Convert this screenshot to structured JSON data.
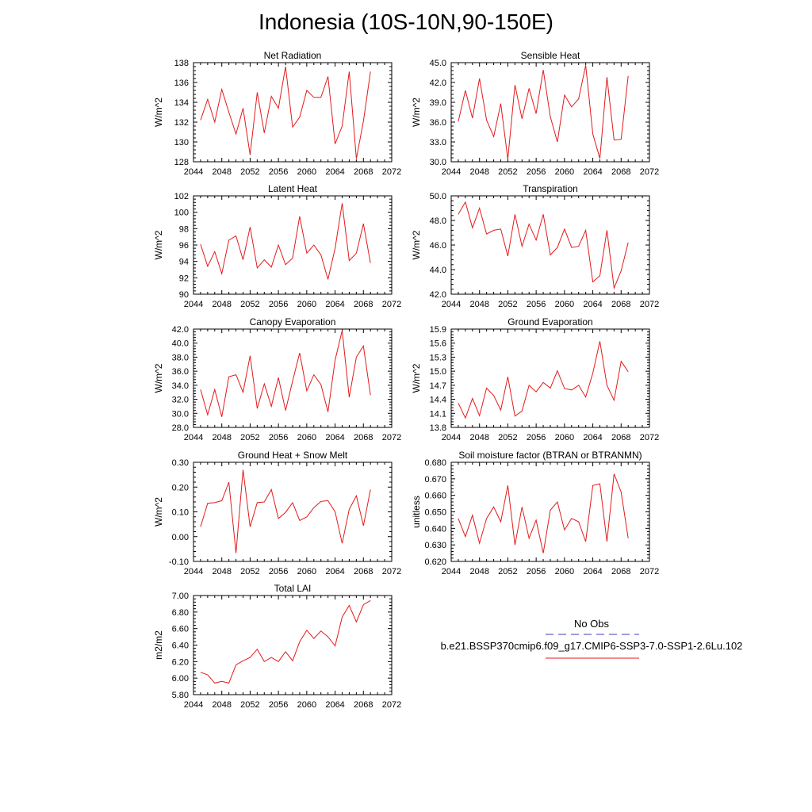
{
  "title": "Indonesia (10S-10N,90-150E)",
  "legend": {
    "obs_label": "No Obs",
    "obs_color": "#3b3bbf",
    "model_label": "b.e21.BSSP370cmip6.f09_g17.CMIP6-SSP3-7.0-SSP1-2.6Lu.102",
    "model_color": "#e31a1c"
  },
  "chart_data": [
    {
      "type": "line",
      "title": "Net Radiation",
      "ylabel": "W/m^2",
      "xlim": [
        2044,
        2072
      ],
      "ylim": [
        128,
        138
      ],
      "xticks": [
        "2044",
        "2048",
        "2052",
        "2056",
        "2060",
        "2064",
        "2068",
        "2072"
      ],
      "yticks": [
        "128",
        "130",
        "132",
        "134",
        "136",
        "138"
      ],
      "x": [
        2045,
        2046,
        2047,
        2048,
        2049,
        2050,
        2051,
        2052,
        2053,
        2054,
        2055,
        2056,
        2057,
        2058,
        2059,
        2060,
        2061,
        2062,
        2063,
        2064,
        2065,
        2066,
        2067,
        2068,
        2069
      ],
      "series": [
        {
          "color": "#e31a1c",
          "values": [
            132.2,
            134.3,
            132.0,
            135.3,
            133.0,
            130.8,
            133.4,
            128.7,
            135.0,
            130.9,
            134.6,
            133.4,
            137.6,
            131.5,
            132.5,
            135.2,
            134.5,
            134.5,
            136.6,
            129.8,
            131.6,
            137.1,
            128.3,
            132.1,
            137.1
          ]
        }
      ]
    },
    {
      "type": "line",
      "title": "Sensible Heat",
      "ylabel": "W/m^2",
      "xlim": [
        2044,
        2072
      ],
      "ylim": [
        30,
        45
      ],
      "xticks": [
        "2044",
        "2048",
        "2052",
        "2056",
        "2060",
        "2064",
        "2068",
        "2072"
      ],
      "yticks": [
        "30.0",
        "33.0",
        "36.0",
        "39.0",
        "42.0",
        "45.0"
      ],
      "x": [
        2045,
        2046,
        2047,
        2048,
        2049,
        2050,
        2051,
        2052,
        2053,
        2054,
        2055,
        2056,
        2057,
        2058,
        2059,
        2060,
        2061,
        2062,
        2063,
        2064,
        2065,
        2066,
        2067,
        2068,
        2069
      ],
      "series": [
        {
          "color": "#e31a1c",
          "values": [
            36.1,
            40.8,
            36.6,
            42.6,
            36.3,
            33.8,
            38.8,
            30.4,
            41.6,
            36.5,
            41.1,
            37.3,
            43.9,
            36.8,
            33.0,
            40.1,
            38.3,
            39.5,
            44.6,
            34.2,
            30.5,
            42.8,
            33.3,
            33.4,
            43.0
          ]
        }
      ]
    },
    {
      "type": "line",
      "title": "Latent Heat",
      "ylabel": "W/m^2",
      "xlim": [
        2044,
        2072
      ],
      "ylim": [
        90,
        102
      ],
      "xticks": [
        "2044",
        "2048",
        "2052",
        "2056",
        "2060",
        "2064",
        "2068",
        "2072"
      ],
      "yticks": [
        "90",
        "92",
        "94",
        "96",
        "98",
        "100",
        "102"
      ],
      "x": [
        2045,
        2046,
        2047,
        2048,
        2049,
        2050,
        2051,
        2052,
        2053,
        2054,
        2055,
        2056,
        2057,
        2058,
        2059,
        2060,
        2061,
        2062,
        2063,
        2064,
        2065,
        2066,
        2067,
        2068,
        2069
      ],
      "series": [
        {
          "color": "#e31a1c",
          "values": [
            96.1,
            93.4,
            95.2,
            92.5,
            96.6,
            97.1,
            94.2,
            98.2,
            93.2,
            94.2,
            93.3,
            96.0,
            93.6,
            94.4,
            99.5,
            95.0,
            96.0,
            94.8,
            91.8,
            95.6,
            101.1,
            94.1,
            95.0,
            98.6,
            93.8
          ]
        }
      ]
    },
    {
      "type": "line",
      "title": "Transpiration",
      "ylabel": "W/m^2",
      "xlim": [
        2044,
        2072
      ],
      "ylim": [
        42,
        50
      ],
      "xticks": [
        "2044",
        "2048",
        "2052",
        "2056",
        "2060",
        "2064",
        "2068",
        "2072"
      ],
      "yticks": [
        "42.0",
        "44.0",
        "46.0",
        "48.0",
        "50.0"
      ],
      "x": [
        2045,
        2046,
        2047,
        2048,
        2049,
        2050,
        2051,
        2052,
        2053,
        2054,
        2055,
        2056,
        2057,
        2058,
        2059,
        2060,
        2061,
        2062,
        2063,
        2064,
        2065,
        2066,
        2067,
        2068,
        2069
      ],
      "series": [
        {
          "color": "#e31a1c",
          "values": [
            48.5,
            49.5,
            47.4,
            49.0,
            46.9,
            47.2,
            47.3,
            45.1,
            48.5,
            45.9,
            47.7,
            46.4,
            48.5,
            45.2,
            45.8,
            47.3,
            45.8,
            45.9,
            47.2,
            43.0,
            43.5,
            47.2,
            42.5,
            43.9,
            46.2
          ]
        }
      ]
    },
    {
      "type": "line",
      "title": "Canopy Evaporation",
      "ylabel": "W/m^2",
      "xlim": [
        2044,
        2072
      ],
      "ylim": [
        28,
        42
      ],
      "xticks": [
        "2044",
        "2048",
        "2052",
        "2056",
        "2060",
        "2064",
        "2068",
        "2072"
      ],
      "yticks": [
        "28.0",
        "30.0",
        "32.0",
        "34.0",
        "36.0",
        "38.0",
        "40.0",
        "42.0"
      ],
      "x": [
        2045,
        2046,
        2047,
        2048,
        2049,
        2050,
        2051,
        2052,
        2053,
        2054,
        2055,
        2056,
        2057,
        2058,
        2059,
        2060,
        2061,
        2062,
        2063,
        2064,
        2065,
        2066,
        2067,
        2068,
        2069
      ],
      "series": [
        {
          "color": "#e31a1c",
          "values": [
            33.4,
            29.8,
            33.4,
            29.5,
            35.2,
            35.5,
            33.0,
            38.2,
            30.7,
            34.2,
            31.0,
            35.1,
            30.4,
            34.6,
            38.6,
            33.2,
            35.5,
            34.1,
            30.2,
            37.6,
            41.8,
            32.3,
            38.0,
            39.6,
            32.6
          ]
        }
      ]
    },
    {
      "type": "line",
      "title": "Ground Evaporation",
      "ylabel": "W/m^2",
      "xlim": [
        2044,
        2072
      ],
      "ylim": [
        13.8,
        15.9
      ],
      "xticks": [
        "2044",
        "2048",
        "2052",
        "2056",
        "2060",
        "2064",
        "2068",
        "2072"
      ],
      "yticks": [
        "13.8",
        "14.1",
        "14.4",
        "14.7",
        "15.0",
        "15.3",
        "15.6",
        "15.9"
      ],
      "x": [
        2045,
        2046,
        2047,
        2048,
        2049,
        2050,
        2051,
        2052,
        2053,
        2054,
        2055,
        2056,
        2057,
        2058,
        2059,
        2060,
        2061,
        2062,
        2063,
        2064,
        2065,
        2066,
        2067,
        2068,
        2069
      ],
      "series": [
        {
          "color": "#e31a1c",
          "values": [
            14.32,
            14.0,
            14.42,
            14.05,
            14.64,
            14.48,
            14.17,
            14.88,
            14.04,
            14.15,
            14.7,
            14.56,
            14.76,
            14.64,
            15.01,
            14.63,
            14.6,
            14.7,
            14.45,
            14.96,
            15.64,
            14.7,
            14.38,
            15.21,
            14.99
          ]
        }
      ]
    },
    {
      "type": "line",
      "title": "Ground Heat + Snow Melt",
      "ylabel": "W/m^2",
      "xlim": [
        2044,
        2072
      ],
      "ylim": [
        -0.1,
        0.3
      ],
      "xticks": [
        "2044",
        "2048",
        "2052",
        "2056",
        "2060",
        "2064",
        "2068",
        "2072"
      ],
      "yticks": [
        "-0.10",
        "0.00",
        "0.10",
        "0.20",
        "0.30"
      ],
      "x": [
        2045,
        2046,
        2047,
        2048,
        2049,
        2050,
        2051,
        2052,
        2053,
        2054,
        2055,
        2056,
        2057,
        2058,
        2059,
        2060,
        2061,
        2062,
        2063,
        2064,
        2065,
        2066,
        2067,
        2068,
        2069
      ],
      "series": [
        {
          "color": "#e31a1c",
          "values": [
            0.04,
            0.135,
            0.137,
            0.145,
            0.22,
            -0.066,
            0.27,
            0.04,
            0.137,
            0.14,
            0.19,
            0.073,
            0.098,
            0.137,
            0.065,
            0.08,
            0.117,
            0.142,
            0.145,
            0.1,
            -0.027,
            0.11,
            0.165,
            0.044,
            0.19
          ]
        }
      ]
    },
    {
      "type": "line",
      "title": "Soil moisture factor (BTRAN or BTRANMN)",
      "ylabel": "unitless",
      "xlim": [
        2044,
        2072
      ],
      "ylim": [
        0.62,
        0.68
      ],
      "xticks": [
        "2044",
        "2048",
        "2052",
        "2056",
        "2060",
        "2064",
        "2068",
        "2072"
      ],
      "yticks": [
        "0.620",
        "0.630",
        "0.640",
        "0.650",
        "0.660",
        "0.670",
        "0.680"
      ],
      "x": [
        2045,
        2046,
        2047,
        2048,
        2049,
        2050,
        2051,
        2052,
        2053,
        2054,
        2055,
        2056,
        2057,
        2058,
        2059,
        2060,
        2061,
        2062,
        2063,
        2064,
        2065,
        2066,
        2067,
        2068,
        2069
      ],
      "series": [
        {
          "color": "#e31a1c",
          "values": [
            0.646,
            0.635,
            0.648,
            0.631,
            0.646,
            0.653,
            0.644,
            0.666,
            0.63,
            0.653,
            0.634,
            0.645,
            0.625,
            0.651,
            0.656,
            0.639,
            0.646,
            0.644,
            0.632,
            0.666,
            0.667,
            0.632,
            0.673,
            0.662,
            0.634
          ]
        }
      ]
    },
    {
      "type": "line",
      "title": "Total LAI",
      "ylabel": "m2/m2",
      "xlim": [
        2044,
        2072
      ],
      "ylim": [
        5.8,
        7.0
      ],
      "xticks": [
        "2044",
        "2048",
        "2052",
        "2056",
        "2060",
        "2064",
        "2068",
        "2072"
      ],
      "yticks": [
        "5.80",
        "6.00",
        "6.20",
        "6.40",
        "6.60",
        "6.80",
        "7.00"
      ],
      "x": [
        2045,
        2046,
        2047,
        2048,
        2049,
        2050,
        2051,
        2052,
        2053,
        2054,
        2055,
        2056,
        2057,
        2058,
        2059,
        2060,
        2061,
        2062,
        2063,
        2064,
        2065,
        2066,
        2067,
        2068,
        2069
      ],
      "series": [
        {
          "color": "#e31a1c",
          "values": [
            6.07,
            6.04,
            5.94,
            5.96,
            5.94,
            6.16,
            6.21,
            6.25,
            6.35,
            6.2,
            6.25,
            6.2,
            6.32,
            6.21,
            6.44,
            6.58,
            6.48,
            6.57,
            6.5,
            6.39,
            6.74,
            6.88,
            6.68,
            6.89,
            6.94
          ]
        }
      ]
    }
  ]
}
